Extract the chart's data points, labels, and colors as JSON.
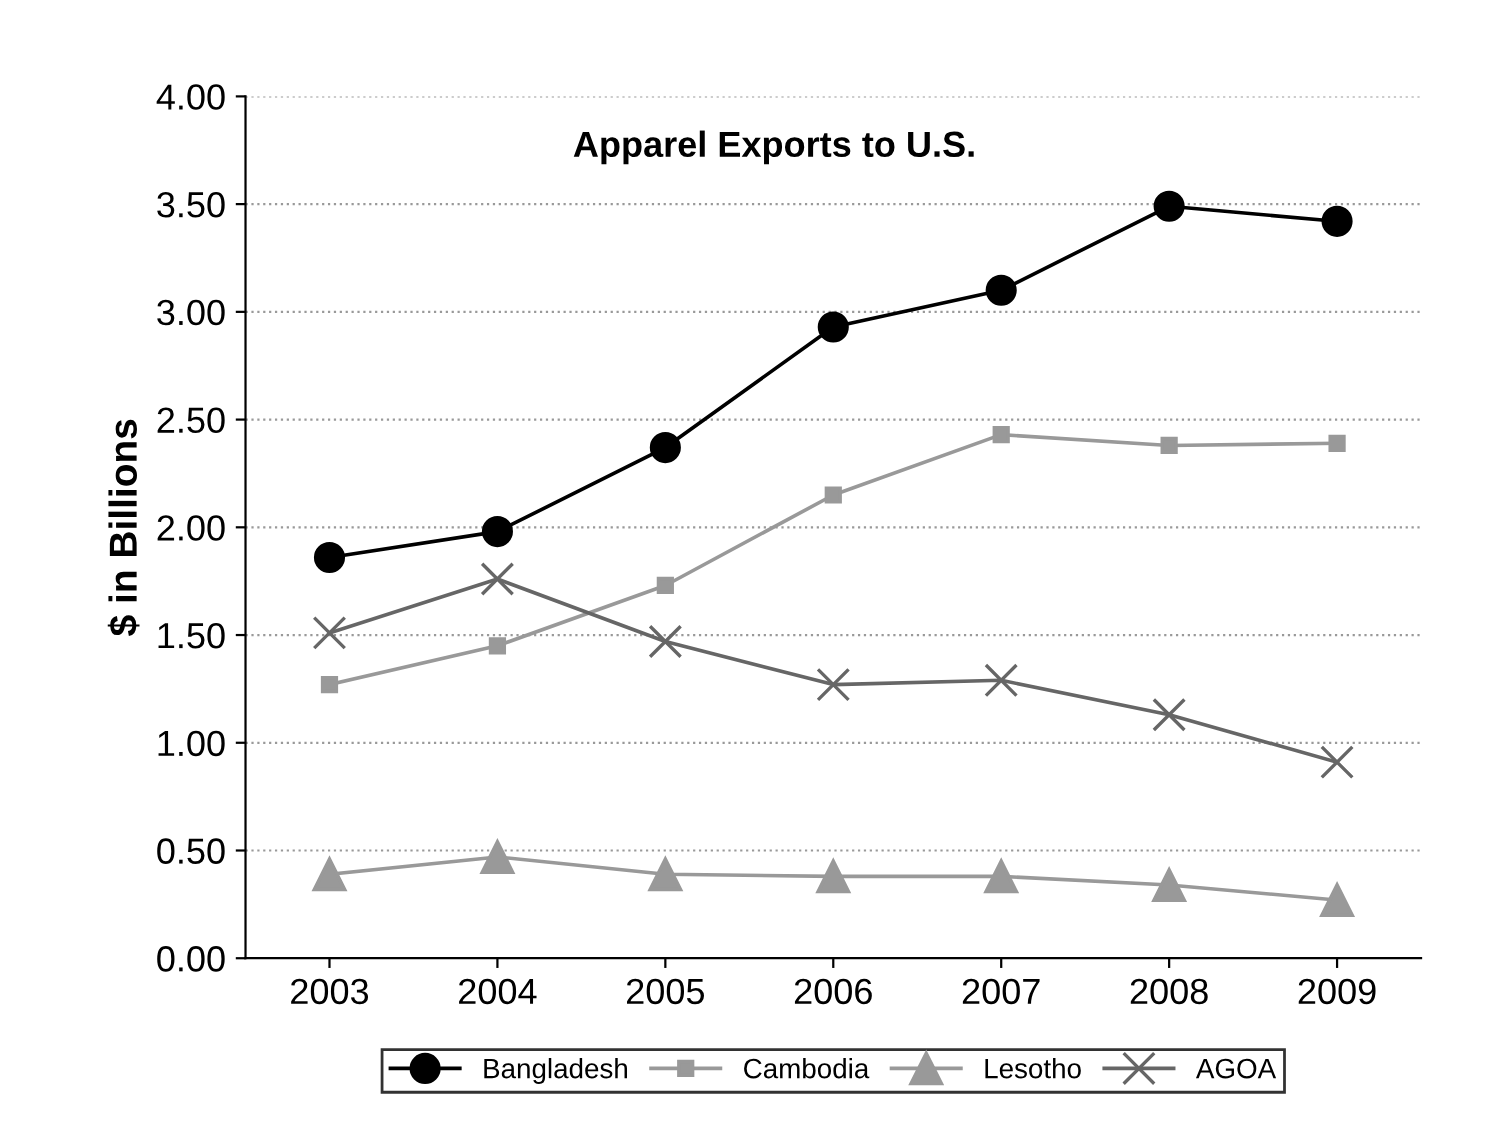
{
  "chart_data": {
    "type": "line",
    "title": "Apparel Exports to U.S.",
    "ylabel": "$ in Billions",
    "categories": [
      "2003",
      "2004",
      "2005",
      "2006",
      "2007",
      "2008",
      "2009"
    ],
    "series": [
      {
        "name": "Bangladesh",
        "color": "#000000",
        "marker": "circle",
        "values": [
          1.86,
          1.98,
          2.37,
          2.93,
          3.1,
          3.49,
          3.42
        ]
      },
      {
        "name": "Cambodia",
        "color": "#999999",
        "marker": "square",
        "values": [
          1.27,
          1.45,
          1.73,
          2.15,
          2.43,
          2.38,
          2.39
        ]
      },
      {
        "name": "Lesotho",
        "color": "#999999",
        "marker": "triangle",
        "values": [
          0.39,
          0.47,
          0.39,
          0.38,
          0.38,
          0.34,
          0.27
        ]
      },
      {
        "name": "AGOA",
        "color": "#666666",
        "marker": "cross",
        "values": [
          1.51,
          1.76,
          1.47,
          1.27,
          1.29,
          1.13,
          0.91
        ]
      }
    ],
    "ylim": [
      0,
      4
    ],
    "yticks": [
      {
        "value": 0,
        "label": "0.00"
      },
      {
        "value": 0.5,
        "label": "0.50"
      },
      {
        "value": 1,
        "label": "1.00"
      },
      {
        "value": 1.5,
        "label": "1.50"
      },
      {
        "value": 2,
        "label": "2.00"
      },
      {
        "value": 2.5,
        "label": "2.50"
      },
      {
        "value": 3,
        "label": "3.00"
      },
      {
        "value": 3.5,
        "label": "3.50"
      },
      {
        "value": 4,
        "label": "4.00"
      }
    ],
    "grid": "y",
    "legend": "bottom"
  }
}
